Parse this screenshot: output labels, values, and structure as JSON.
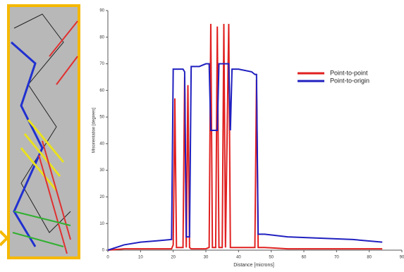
{
  "chart_data": {
    "type": "line",
    "x_label": "Distance [microns]",
    "y_label": "Misorientation [degrees]",
    "x": [
      0,
      5,
      10,
      15,
      19.5,
      20,
      20.5,
      21,
      22,
      23,
      23.5,
      24,
      24.5,
      25,
      25.5,
      26,
      28,
      30,
      31,
      31.5,
      32,
      33,
      33.5,
      34,
      35,
      35.5,
      36,
      37,
      37.5,
      38,
      40,
      44,
      45,
      45.5,
      46,
      48,
      55,
      65,
      75,
      84
    ],
    "series": [
      {
        "name": "Point-to-point",
        "color": "#e02020",
        "values": [
          0,
          0.5,
          0.5,
          0.5,
          0.5,
          2,
          57,
          1,
          1,
          1,
          65,
          1,
          62,
          1,
          0.5,
          0.5,
          0.5,
          0.5,
          1,
          85,
          1,
          1,
          84,
          1,
          1,
          85,
          1,
          85,
          1,
          1,
          1,
          1,
          1,
          64,
          1,
          1,
          0.5,
          0.5,
          0.5,
          0.5
        ]
      },
      {
        "name": "Point-to-origin",
        "color": "#2020c0",
        "values": [
          0,
          2,
          3,
          3.5,
          4,
          68,
          68,
          68,
          68,
          68,
          67,
          5,
          5,
          5,
          69,
          69,
          69,
          70,
          70,
          45,
          45,
          45,
          45,
          70,
          70,
          70,
          70,
          70,
          45,
          68,
          68,
          67,
          66,
          66,
          6,
          6,
          5,
          4.5,
          4,
          3
        ]
      }
    ],
    "xlim": [
      0,
      90
    ],
    "xticks": [
      0,
      10,
      20,
      30,
      40,
      50,
      60,
      70,
      80,
      90
    ],
    "ylim": [
      0,
      90
    ],
    "yticks": [
      0,
      10,
      20,
      30,
      40,
      50,
      60,
      70,
      80,
      90
    ],
    "legend": "upper right"
  }
}
